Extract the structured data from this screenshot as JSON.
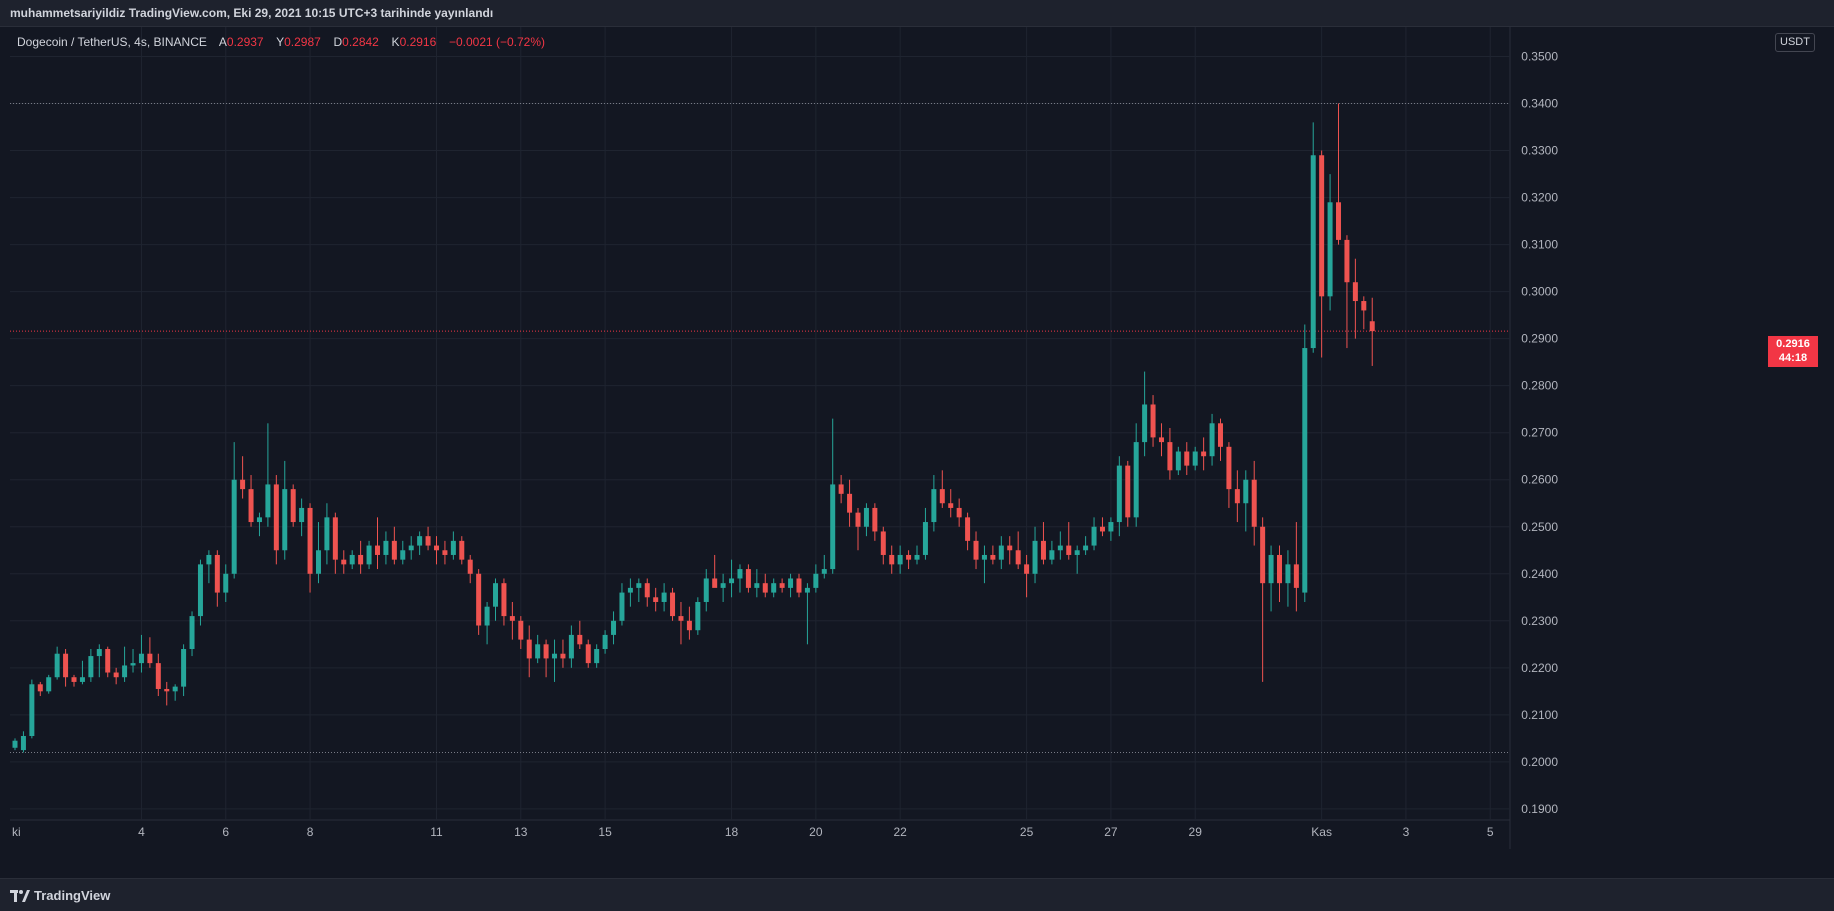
{
  "header": {
    "publish_text": "muhammetsariyildiz TradingView.com, Eki 29, 2021 10:15 UTC+3 tarihinde yayınlandı"
  },
  "legend": {
    "symbol": "Dogecoin / TetherUS, 4s, BINANCE",
    "open_label": "A",
    "open": "0.2937",
    "high_label": "Y",
    "high": "0.2987",
    "low_label": "D",
    "low": "0.2842",
    "close_label": "K",
    "close": "0.2916",
    "change": "−0.0021 (−0.72%)"
  },
  "price_scale": {
    "currency": "USDT",
    "current_price": "0.2916",
    "countdown": "44:18"
  },
  "footer": {
    "brand": "TradingView"
  },
  "colors": {
    "background": "#131722",
    "up": "#26a69a",
    "down": "#ef5350",
    "grid": "#1f2430",
    "current_price_line": "#f23645"
  },
  "chart_data": {
    "type": "candlestick",
    "title": "Dogecoin / TetherUS, 4s, BINANCE",
    "ylabel": "USDT",
    "ylim": [
      0.187,
      0.355
    ],
    "y_ticks": [
      "0.1900",
      "0.2000",
      "0.2100",
      "0.2200",
      "0.2300",
      "0.2400",
      "0.2500",
      "0.2600",
      "0.2700",
      "0.2800",
      "0.2900",
      "0.3000",
      "0.3100",
      "0.3200",
      "0.3300",
      "0.3400",
      "0.3500"
    ],
    "x_ticks": [
      {
        "label": "ki",
        "index": 0
      },
      {
        "label": "4",
        "index": 15
      },
      {
        "label": "6",
        "index": 25
      },
      {
        "label": "8",
        "index": 35
      },
      {
        "label": "11",
        "index": 50
      },
      {
        "label": "13",
        "index": 60
      },
      {
        "label": "15",
        "index": 70
      },
      {
        "label": "18",
        "index": 85
      },
      {
        "label": "20",
        "index": 95
      },
      {
        "label": "22",
        "index": 105
      },
      {
        "label": "25",
        "index": 120
      },
      {
        "label": "27",
        "index": 130
      },
      {
        "label": "29",
        "index": 140
      },
      {
        "label": "Kas",
        "index": 155
      },
      {
        "label": "3",
        "index": 165
      },
      {
        "label": "5",
        "index": 175
      }
    ],
    "horizontal_levels": [
      0.202,
      0.2916,
      0.34
    ],
    "candles": [
      [
        0.203,
        0.205,
        0.2025,
        0.2045
      ],
      [
        0.2025,
        0.2065,
        0.202,
        0.2055
      ],
      [
        0.2055,
        0.2175,
        0.205,
        0.2165
      ],
      [
        0.2165,
        0.217,
        0.214,
        0.215
      ],
      [
        0.215,
        0.2185,
        0.2145,
        0.218
      ],
      [
        0.218,
        0.2245,
        0.2175,
        0.223
      ],
      [
        0.223,
        0.224,
        0.216,
        0.218
      ],
      [
        0.218,
        0.2185,
        0.216,
        0.217
      ],
      [
        0.217,
        0.2215,
        0.2165,
        0.218
      ],
      [
        0.218,
        0.224,
        0.217,
        0.2225
      ],
      [
        0.2225,
        0.225,
        0.218,
        0.224
      ],
      [
        0.224,
        0.2245,
        0.218,
        0.219
      ],
      [
        0.219,
        0.22,
        0.2165,
        0.218
      ],
      [
        0.218,
        0.2245,
        0.217,
        0.2205
      ],
      [
        0.2205,
        0.224,
        0.219,
        0.221
      ],
      [
        0.221,
        0.227,
        0.219,
        0.223
      ],
      [
        0.223,
        0.2265,
        0.22,
        0.221
      ],
      [
        0.221,
        0.223,
        0.214,
        0.2155
      ],
      [
        0.2155,
        0.217,
        0.212,
        0.215
      ],
      [
        0.215,
        0.2165,
        0.213,
        0.216
      ],
      [
        0.216,
        0.225,
        0.214,
        0.224
      ],
      [
        0.224,
        0.232,
        0.2225,
        0.231
      ],
      [
        0.231,
        0.243,
        0.229,
        0.242
      ],
      [
        0.242,
        0.245,
        0.238,
        0.244
      ],
      [
        0.244,
        0.245,
        0.233,
        0.236
      ],
      [
        0.236,
        0.242,
        0.234,
        0.24
      ],
      [
        0.24,
        0.268,
        0.239,
        0.26
      ],
      [
        0.26,
        0.265,
        0.256,
        0.258
      ],
      [
        0.258,
        0.261,
        0.25,
        0.251
      ],
      [
        0.251,
        0.253,
        0.248,
        0.252
      ],
      [
        0.252,
        0.272,
        0.25,
        0.259
      ],
      [
        0.259,
        0.261,
        0.242,
        0.245
      ],
      [
        0.245,
        0.264,
        0.243,
        0.258
      ],
      [
        0.258,
        0.259,
        0.25,
        0.251
      ],
      [
        0.251,
        0.256,
        0.248,
        0.254
      ],
      [
        0.254,
        0.255,
        0.236,
        0.24
      ],
      [
        0.24,
        0.251,
        0.238,
        0.245
      ],
      [
        0.245,
        0.255,
        0.242,
        0.252
      ],
      [
        0.252,
        0.253,
        0.24,
        0.243
      ],
      [
        0.243,
        0.245,
        0.24,
        0.242
      ],
      [
        0.242,
        0.245,
        0.241,
        0.244
      ],
      [
        0.244,
        0.247,
        0.24,
        0.242
      ],
      [
        0.242,
        0.247,
        0.241,
        0.246
      ],
      [
        0.246,
        0.252,
        0.241,
        0.244
      ],
      [
        0.244,
        0.249,
        0.242,
        0.247
      ],
      [
        0.247,
        0.25,
        0.242,
        0.243
      ],
      [
        0.243,
        0.247,
        0.242,
        0.245
      ],
      [
        0.245,
        0.248,
        0.243,
        0.246
      ],
      [
        0.246,
        0.249,
        0.244,
        0.248
      ],
      [
        0.248,
        0.25,
        0.245,
        0.246
      ],
      [
        0.246,
        0.248,
        0.242,
        0.245
      ],
      [
        0.245,
        0.247,
        0.242,
        0.244
      ],
      [
        0.244,
        0.249,
        0.243,
        0.247
      ],
      [
        0.247,
        0.248,
        0.242,
        0.243
      ],
      [
        0.243,
        0.244,
        0.238,
        0.24
      ],
      [
        0.24,
        0.241,
        0.227,
        0.229
      ],
      [
        0.229,
        0.234,
        0.225,
        0.233
      ],
      [
        0.233,
        0.239,
        0.23,
        0.238
      ],
      [
        0.238,
        0.239,
        0.229,
        0.231
      ],
      [
        0.231,
        0.234,
        0.226,
        0.23
      ],
      [
        0.23,
        0.231,
        0.224,
        0.226
      ],
      [
        0.226,
        0.229,
        0.218,
        0.222
      ],
      [
        0.222,
        0.227,
        0.221,
        0.225
      ],
      [
        0.225,
        0.226,
        0.218,
        0.222
      ],
      [
        0.222,
        0.226,
        0.217,
        0.223
      ],
      [
        0.223,
        0.226,
        0.22,
        0.222
      ],
      [
        0.222,
        0.229,
        0.22,
        0.227
      ],
      [
        0.227,
        0.23,
        0.224,
        0.225
      ],
      [
        0.225,
        0.226,
        0.22,
        0.221
      ],
      [
        0.221,
        0.225,
        0.22,
        0.224
      ],
      [
        0.224,
        0.228,
        0.223,
        0.227
      ],
      [
        0.227,
        0.232,
        0.225,
        0.23
      ],
      [
        0.23,
        0.238,
        0.229,
        0.236
      ],
      [
        0.236,
        0.239,
        0.233,
        0.237
      ],
      [
        0.237,
        0.239,
        0.234,
        0.238
      ],
      [
        0.238,
        0.239,
        0.233,
        0.235
      ],
      [
        0.235,
        0.237,
        0.232,
        0.234
      ],
      [
        0.234,
        0.238,
        0.232,
        0.236
      ],
      [
        0.236,
        0.237,
        0.23,
        0.231
      ],
      [
        0.231,
        0.234,
        0.225,
        0.23
      ],
      [
        0.23,
        0.233,
        0.226,
        0.228
      ],
      [
        0.228,
        0.235,
        0.227,
        0.234
      ],
      [
        0.234,
        0.241,
        0.232,
        0.239
      ],
      [
        0.239,
        0.244,
        0.238,
        0.237
      ],
      [
        0.237,
        0.24,
        0.234,
        0.238
      ],
      [
        0.238,
        0.243,
        0.235,
        0.239
      ],
      [
        0.239,
        0.242,
        0.236,
        0.241
      ],
      [
        0.241,
        0.242,
        0.236,
        0.237
      ],
      [
        0.237,
        0.241,
        0.235,
        0.238
      ],
      [
        0.238,
        0.24,
        0.235,
        0.236
      ],
      [
        0.236,
        0.239,
        0.235,
        0.238
      ],
      [
        0.238,
        0.239,
        0.236,
        0.237
      ],
      [
        0.237,
        0.24,
        0.235,
        0.239
      ],
      [
        0.239,
        0.24,
        0.235,
        0.236
      ],
      [
        0.236,
        0.238,
        0.225,
        0.237
      ],
      [
        0.237,
        0.242,
        0.236,
        0.24
      ],
      [
        0.24,
        0.244,
        0.239,
        0.241
      ],
      [
        0.241,
        0.273,
        0.24,
        0.259
      ],
      [
        0.259,
        0.261,
        0.255,
        0.257
      ],
      [
        0.257,
        0.26,
        0.25,
        0.253
      ],
      [
        0.253,
        0.254,
        0.245,
        0.25
      ],
      [
        0.25,
        0.255,
        0.248,
        0.254
      ],
      [
        0.254,
        0.255,
        0.247,
        0.249
      ],
      [
        0.249,
        0.25,
        0.242,
        0.244
      ],
      [
        0.244,
        0.246,
        0.24,
        0.242
      ],
      [
        0.242,
        0.246,
        0.24,
        0.244
      ],
      [
        0.244,
        0.245,
        0.241,
        0.243
      ],
      [
        0.243,
        0.246,
        0.242,
        0.244
      ],
      [
        0.244,
        0.254,
        0.243,
        0.251
      ],
      [
        0.251,
        0.261,
        0.249,
        0.258
      ],
      [
        0.258,
        0.262,
        0.254,
        0.255
      ],
      [
        0.255,
        0.258,
        0.252,
        0.254
      ],
      [
        0.254,
        0.256,
        0.25,
        0.252
      ],
      [
        0.252,
        0.253,
        0.245,
        0.247
      ],
      [
        0.247,
        0.249,
        0.241,
        0.243
      ],
      [
        0.243,
        0.246,
        0.238,
        0.244
      ],
      [
        0.244,
        0.246,
        0.242,
        0.243
      ],
      [
        0.243,
        0.248,
        0.241,
        0.246
      ],
      [
        0.246,
        0.248,
        0.242,
        0.245
      ],
      [
        0.245,
        0.249,
        0.241,
        0.242
      ],
      [
        0.242,
        0.244,
        0.235,
        0.24
      ],
      [
        0.24,
        0.25,
        0.238,
        0.247
      ],
      [
        0.247,
        0.251,
        0.242,
        0.243
      ],
      [
        0.243,
        0.247,
        0.242,
        0.245
      ],
      [
        0.245,
        0.249,
        0.243,
        0.246
      ],
      [
        0.246,
        0.251,
        0.243,
        0.244
      ],
      [
        0.244,
        0.246,
        0.24,
        0.245
      ],
      [
        0.245,
        0.248,
        0.244,
        0.246
      ],
      [
        0.246,
        0.252,
        0.245,
        0.25
      ],
      [
        0.25,
        0.252,
        0.248,
        0.249
      ],
      [
        0.249,
        0.252,
        0.247,
        0.251
      ],
      [
        0.251,
        0.265,
        0.248,
        0.263
      ],
      [
        0.263,
        0.264,
        0.25,
        0.252
      ],
      [
        0.252,
        0.272,
        0.25,
        0.268
      ],
      [
        0.268,
        0.283,
        0.265,
        0.276
      ],
      [
        0.276,
        0.278,
        0.267,
        0.269
      ],
      [
        0.269,
        0.272,
        0.265,
        0.268
      ],
      [
        0.268,
        0.271,
        0.26,
        0.262
      ],
      [
        0.262,
        0.267,
        0.261,
        0.266
      ],
      [
        0.266,
        0.268,
        0.261,
        0.263
      ],
      [
        0.263,
        0.267,
        0.262,
        0.266
      ],
      [
        0.266,
        0.269,
        0.262,
        0.265
      ],
      [
        0.265,
        0.274,
        0.263,
        0.272
      ],
      [
        0.272,
        0.273,
        0.264,
        0.267
      ],
      [
        0.267,
        0.268,
        0.254,
        0.258
      ],
      [
        0.258,
        0.262,
        0.251,
        0.255
      ],
      [
        0.255,
        0.262,
        0.249,
        0.26
      ],
      [
        0.26,
        0.264,
        0.246,
        0.25
      ],
      [
        0.25,
        0.252,
        0.217,
        0.238
      ],
      [
        0.238,
        0.246,
        0.232,
        0.244
      ],
      [
        0.244,
        0.246,
        0.234,
        0.238
      ],
      [
        0.238,
        0.245,
        0.233,
        0.242
      ],
      [
        0.242,
        0.251,
        0.232,
        0.237
      ],
      [
        0.236,
        0.293,
        0.234,
        0.288
      ],
      [
        0.288,
        0.336,
        0.287,
        0.329
      ],
      [
        0.329,
        0.33,
        0.286,
        0.299
      ],
      [
        0.299,
        0.325,
        0.296,
        0.319
      ],
      [
        0.319,
        0.34,
        0.31,
        0.311
      ],
      [
        0.311,
        0.312,
        0.288,
        0.302
      ],
      [
        0.302,
        0.307,
        0.29,
        0.298
      ],
      [
        0.298,
        0.299,
        0.292,
        0.296
      ],
      [
        0.2937,
        0.2987,
        0.2842,
        0.2916
      ]
    ]
  }
}
